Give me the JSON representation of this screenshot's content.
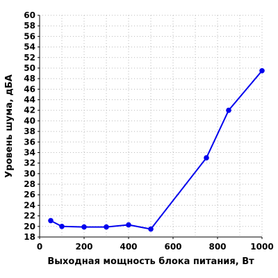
{
  "chart_data": {
    "type": "line",
    "xlabel": "Выходная мощность блока питания, Вт",
    "ylabel": "Уровень шума, дБА",
    "xlim": [
      0,
      1000
    ],
    "ylim": [
      18,
      60
    ],
    "x_ticks": [
      0,
      200,
      400,
      600,
      800,
      1000
    ],
    "y_ticks": [
      18,
      20,
      22,
      24,
      26,
      28,
      30,
      32,
      34,
      36,
      38,
      40,
      42,
      44,
      46,
      48,
      50,
      52,
      54,
      56,
      58,
      60
    ],
    "grid": true,
    "x_minor_grid_step": 100,
    "series": [
      {
        "color": "#0000ee",
        "marker": "circle",
        "x": [
          50,
          100,
          200,
          300,
          400,
          500,
          750,
          850,
          1000
        ],
        "y": [
          21.1,
          20.0,
          19.9,
          19.9,
          20.3,
          19.5,
          33.0,
          42.0,
          49.5
        ]
      }
    ]
  }
}
